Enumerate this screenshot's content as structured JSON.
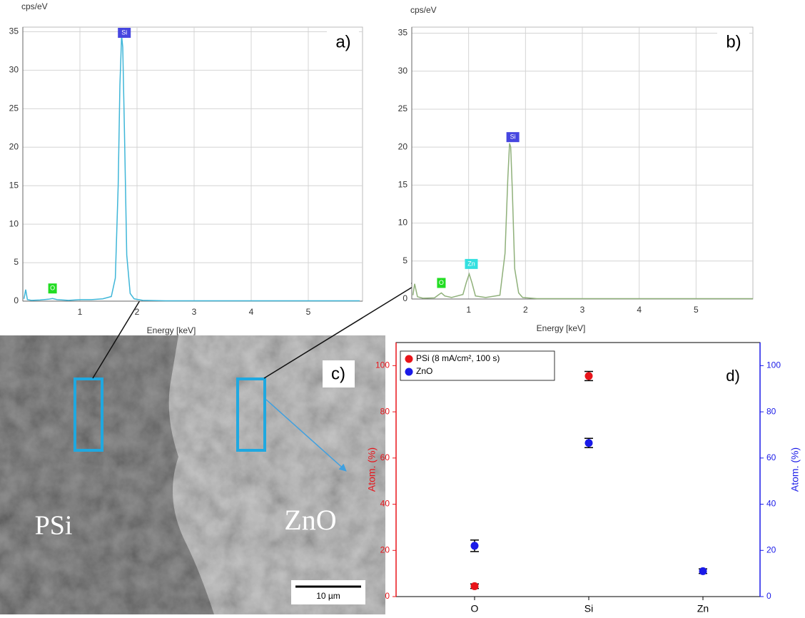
{
  "chart_data": [
    {
      "type": "line",
      "panel_label": "a)",
      "y_label": "cps/eV",
      "x_label": "Energy [keV]",
      "xlim": [
        0,
        5.95
      ],
      "ylim": [
        0,
        35.6
      ],
      "xticks": [
        1,
        2,
        3,
        4,
        5
      ],
      "yticks": [
        0,
        5,
        10,
        15,
        20,
        25,
        30,
        35
      ],
      "grid": true,
      "x": [
        0.02,
        0.05,
        0.08,
        0.15,
        0.3,
        0.45,
        0.52,
        0.6,
        0.8,
        1.0,
        1.2,
        1.4,
        1.55,
        1.62,
        1.67,
        1.7,
        1.73,
        1.75,
        1.78,
        1.82,
        1.88,
        1.95,
        2.1,
        2.5,
        3,
        4,
        5,
        5.9
      ],
      "series": [
        {
          "color": "#3fb6d8",
          "values": [
            0.3,
            1.5,
            0.2,
            0.1,
            0.15,
            0.25,
            0.35,
            0.2,
            0.1,
            0.2,
            0.2,
            0.3,
            0.6,
            3,
            15,
            28,
            34.5,
            33,
            22,
            6,
            1,
            0.3,
            0.1,
            0.05,
            0.05,
            0.05,
            0.05,
            0.05
          ]
        }
      ],
      "annotations": [
        {
          "text": "O",
          "x": 0.52,
          "color": "#22dd22"
        },
        {
          "text": "Si",
          "x": 1.74,
          "color": "#4646e0"
        }
      ]
    },
    {
      "type": "line",
      "panel_label": "b)",
      "y_label": "cps/eV",
      "x_label": "Energy [keV]",
      "xlim": [
        0,
        6.0
      ],
      "ylim": [
        0,
        35.8
      ],
      "xticks": [
        1,
        2,
        3,
        4,
        5
      ],
      "yticks": [
        0,
        5,
        10,
        15,
        20,
        25,
        30,
        35
      ],
      "grid": true,
      "x": [
        0.02,
        0.05,
        0.1,
        0.2,
        0.4,
        0.48,
        0.52,
        0.58,
        0.7,
        0.9,
        0.96,
        1.01,
        1.06,
        1.12,
        1.3,
        1.55,
        1.64,
        1.69,
        1.72,
        1.74,
        1.77,
        1.81,
        1.88,
        1.95,
        2.2,
        3,
        4,
        5,
        6.0
      ],
      "series": [
        {
          "color": "#8fb07a",
          "values": [
            0.5,
            2,
            0.3,
            0.1,
            0.15,
            0.6,
            0.8,
            0.4,
            0.2,
            0.6,
            2.2,
            3.3,
            2.1,
            0.4,
            0.2,
            0.5,
            6,
            16,
            20.5,
            20,
            14,
            4,
            0.8,
            0.2,
            0.05,
            0.05,
            0.05,
            0.05,
            0.05
          ]
        }
      ],
      "annotations": [
        {
          "text": "O",
          "x": 0.52,
          "color": "#22dd22"
        },
        {
          "text": "Zn",
          "x": 1.01,
          "color": "#33e0e0"
        },
        {
          "text": "Si",
          "x": 1.74,
          "color": "#4646e0"
        }
      ]
    },
    {
      "type": "scatter",
      "panel_label": "d)",
      "y_label": "Atom. (%)",
      "y2_label": "Atom. (%)",
      "categories": [
        "O",
        "Si",
        "Zn"
      ],
      "ylim": [
        0,
        110
      ],
      "yticks": [
        0,
        20,
        40,
        60,
        80,
        100
      ],
      "y2lim": [
        0,
        110
      ],
      "y2ticks": [
        0,
        20,
        40,
        60,
        80,
        100
      ],
      "y_color": "#e8141a",
      "y2_color": "#1a1ae8",
      "legend": "upper left",
      "series": [
        {
          "name": "PSi (8 mA/cm², 100 s)",
          "color": "#e8141a",
          "values": [
            4.5,
            95.5,
            null
          ],
          "errors": [
            1,
            2,
            null
          ]
        },
        {
          "name": "ZnO",
          "color": "#1a1ae8",
          "axis": "y2",
          "values": [
            22,
            66.5,
            11
          ],
          "errors": [
            2.5,
            2,
            1
          ]
        }
      ]
    }
  ],
  "sem_image": {
    "panel_label": "c)",
    "labels": [
      "PSi",
      "ZnO"
    ],
    "scale_bar": "10 µm"
  }
}
